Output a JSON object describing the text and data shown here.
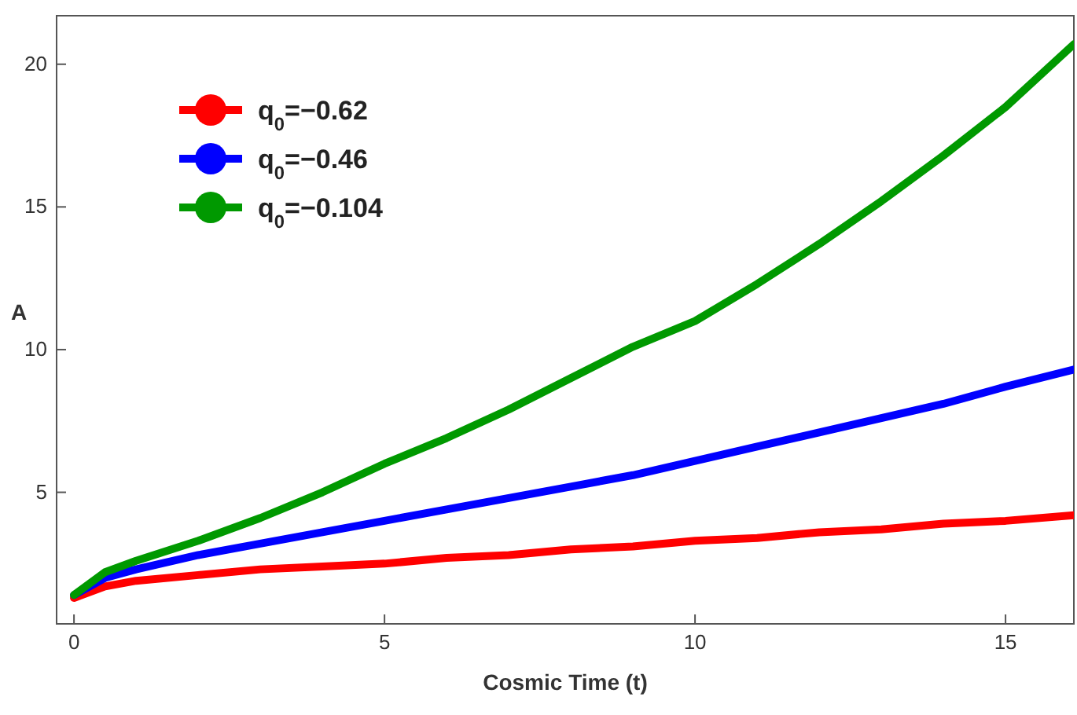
{
  "chart_data": {
    "type": "line",
    "xlabel": "Cosmic Time (t)",
    "ylabel": "A",
    "xlim": [
      -0.28,
      16.1
    ],
    "ylim": [
      0.39,
      21.7
    ],
    "xticks": [
      0,
      5,
      10,
      15
    ],
    "yticks": [
      5,
      10,
      15,
      20
    ],
    "legend": "top left",
    "x": [
      0,
      0.5,
      1,
      2,
      3,
      4,
      5,
      6,
      7,
      8,
      9,
      10,
      11,
      12,
      13,
      14,
      15,
      16.1
    ],
    "series": [
      {
        "name": "q$_{0}$=−0.62",
        "color": "#ff0000",
        "values": [
          1.3,
          1.7,
          1.9,
          2.1,
          2.3,
          2.4,
          2.5,
          2.7,
          2.8,
          3.0,
          3.1,
          3.3,
          3.4,
          3.6,
          3.7,
          3.9,
          4.0,
          4.2
        ]
      },
      {
        "name": "q$_{0}$=−0.46",
        "color": "#0000ff",
        "values": [
          1.4,
          2.0,
          2.3,
          2.8,
          3.2,
          3.6,
          4.0,
          4.4,
          4.8,
          5.2,
          5.6,
          6.1,
          6.6,
          7.1,
          7.6,
          8.1,
          8.7,
          9.3
        ]
      },
      {
        "name": "q$_{0}$=−0.104",
        "color": "#009900",
        "values": [
          1.4,
          2.2,
          2.6,
          3.3,
          4.1,
          5.0,
          6.0,
          6.9,
          7.9,
          9.0,
          10.1,
          11.0,
          12.3,
          13.7,
          15.2,
          16.8,
          18.5,
          20.7
        ]
      }
    ]
  }
}
